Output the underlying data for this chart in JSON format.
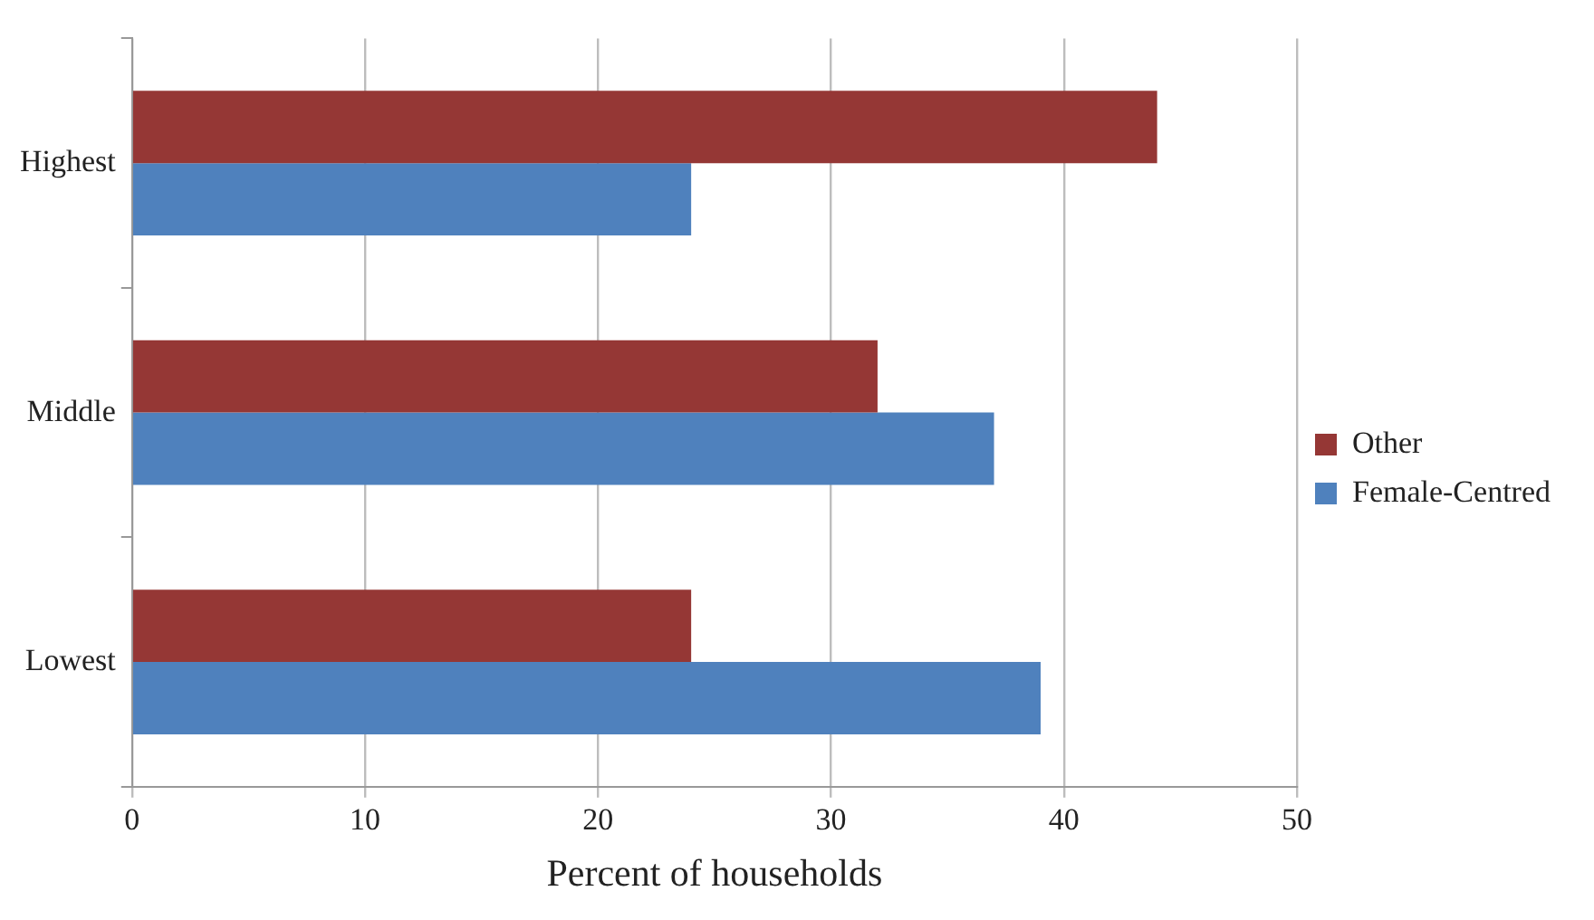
{
  "chart_data": {
    "type": "bar",
    "orientation": "horizontal",
    "xlabel": "Percent of households",
    "categories": [
      "Highest",
      "Middle",
      "Lowest"
    ],
    "series": [
      {
        "name": "Other",
        "color": "#953735",
        "values": [
          44,
          32,
          24
        ]
      },
      {
        "name": "Female-Centred",
        "color": "#4f81bd",
        "values": [
          24,
          37,
          39
        ]
      }
    ],
    "xlim": [
      0,
      50
    ],
    "xticks": [
      0,
      10,
      20,
      30,
      40,
      50
    ],
    "grid": "x",
    "legend": "right"
  }
}
